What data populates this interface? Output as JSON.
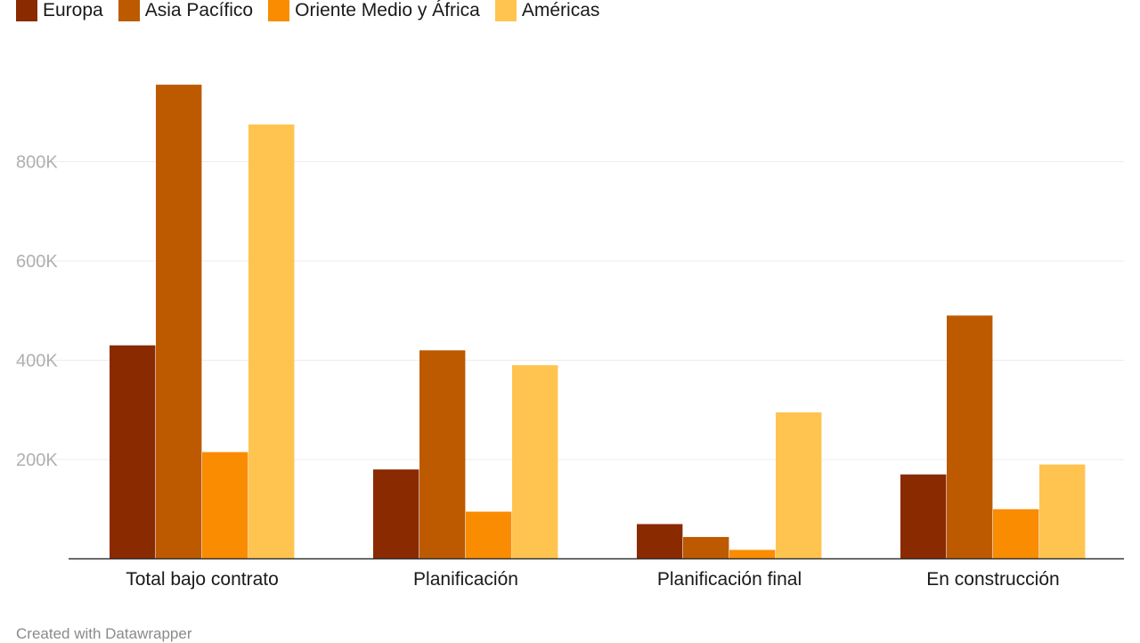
{
  "chart_data": {
    "type": "bar",
    "categories": [
      "Total bajo contrato",
      "Planificación",
      "Planificación final",
      "En construcción"
    ],
    "series": [
      {
        "name": "Europa",
        "color": "#8a2a00",
        "values": [
          430000,
          180000,
          70000,
          170000
        ]
      },
      {
        "name": "Asia Pacífico",
        "color": "#bd5a00",
        "values": [
          955000,
          420000,
          44000,
          490000
        ]
      },
      {
        "name": "Oriente Medio y África",
        "color": "#f98c00",
        "values": [
          215000,
          95000,
          18000,
          100000
        ]
      },
      {
        "name": "Américas",
        "color": "#ffc450",
        "values": [
          875000,
          390000,
          295000,
          190000
        ]
      }
    ],
    "yticks": [
      200000,
      400000,
      600000,
      800000
    ],
    "ytick_labels": [
      "200K",
      "400K",
      "600K",
      "800K"
    ],
    "ylim": [
      0,
      1000000
    ],
    "grid": true,
    "legend_position": "top-left"
  },
  "footer": {
    "credit": "Created with Datawrapper"
  }
}
